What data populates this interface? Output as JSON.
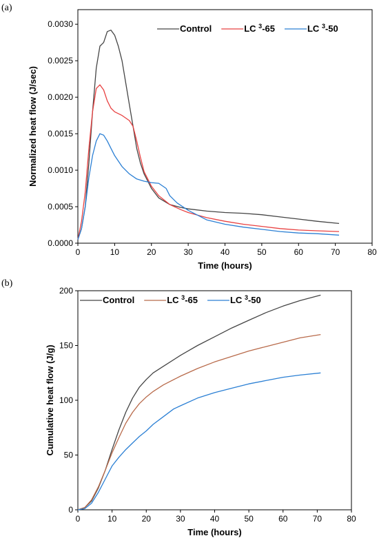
{
  "colors": {
    "control": "#444444",
    "lc3_65": "#e84040",
    "lc3_50": "#2a7fd4",
    "lc3_65_b": "#b86a4a"
  },
  "chart_data": [
    {
      "panel": "(a)",
      "type": "line",
      "xlabel": "Time (hours)",
      "ylabel": "Normalized heat flow (J/sec)",
      "xlim": [
        0,
        80
      ],
      "ylim": [
        0,
        0.0032
      ],
      "xticks": [
        0,
        10,
        20,
        30,
        40,
        50,
        60,
        70,
        80
      ],
      "yticks": [
        0.0,
        0.0005,
        0.001,
        0.0015,
        0.002,
        0.0025,
        0.003
      ],
      "ytick_labels": [
        "0.0000",
        "0.0005",
        "0.0010",
        "0.0015",
        "0.0020",
        "0.0025",
        "0.0030"
      ],
      "grid": false,
      "legend_position": "top-right",
      "series": [
        {
          "name": "Control",
          "color_key": "control",
          "x": [
            0,
            1,
            2,
            3,
            4,
            5,
            6,
            7,
            8,
            9,
            10,
            11,
            12,
            13,
            14,
            15,
            16,
            17,
            18,
            20,
            22,
            25,
            28,
            30,
            35,
            40,
            45,
            50,
            55,
            60,
            65,
            71
          ],
          "y": [
            5e-05,
            0.0002,
            0.0005,
            0.0011,
            0.0018,
            0.0024,
            0.0027,
            0.00275,
            0.0029,
            0.00292,
            0.00285,
            0.0027,
            0.0025,
            0.0022,
            0.0019,
            0.0016,
            0.0013,
            0.0011,
            0.00095,
            0.00075,
            0.00062,
            0.00053,
            0.00049,
            0.00047,
            0.00044,
            0.00042,
            0.00041,
            0.00039,
            0.00036,
            0.00033,
            0.0003,
            0.00027
          ]
        },
        {
          "name": "LC 3-65",
          "color_key": "lc3_65",
          "x": [
            0,
            1,
            2,
            3,
            4,
            5,
            6,
            7,
            8,
            9,
            10,
            12,
            14,
            15,
            16,
            17,
            18,
            20,
            22,
            25,
            28,
            30,
            35,
            40,
            45,
            50,
            55,
            60,
            65,
            71
          ],
          "y": [
            5e-05,
            0.0003,
            0.0007,
            0.0013,
            0.0018,
            0.00212,
            0.00217,
            0.0021,
            0.00195,
            0.00185,
            0.0018,
            0.00175,
            0.00168,
            0.0016,
            0.0014,
            0.00118,
            0.00098,
            0.00078,
            0.00065,
            0.00053,
            0.00046,
            0.00042,
            0.00035,
            0.0003,
            0.00026,
            0.00023,
            0.0002,
            0.00018,
            0.00017,
            0.00016
          ]
        },
        {
          "name": "LC 3-50",
          "color_key": "lc3_50",
          "x": [
            0,
            1,
            2,
            3,
            4,
            5,
            6,
            7,
            8,
            9,
            10,
            12,
            14,
            16,
            18,
            20,
            22,
            24,
            25,
            27,
            30,
            35,
            40,
            45,
            50,
            55,
            60,
            65,
            71
          ],
          "y": [
            5e-05,
            0.0002,
            0.0005,
            0.0009,
            0.0012,
            0.0014,
            0.0015,
            0.00148,
            0.0014,
            0.0013,
            0.0012,
            0.00105,
            0.00095,
            0.00088,
            0.00085,
            0.00083,
            0.00082,
            0.00075,
            0.00065,
            0.00055,
            0.00045,
            0.00032,
            0.00026,
            0.00022,
            0.00019,
            0.00016,
            0.00014,
            0.00013,
            0.00011
          ]
        }
      ]
    },
    {
      "panel": "(b)",
      "type": "line",
      "xlabel": "Time (hours)",
      "ylabel": "Cumulative heat flow (J/g)",
      "xlim": [
        0,
        80
      ],
      "ylim": [
        0,
        200
      ],
      "xticks": [
        0,
        10,
        20,
        30,
        40,
        50,
        60,
        70,
        80
      ],
      "yticks": [
        0,
        50,
        100,
        150,
        200
      ],
      "ytick_labels": [
        "0",
        "50",
        "100",
        "150",
        "200"
      ],
      "grid": false,
      "legend_position": "top-left",
      "series": [
        {
          "name": "Control",
          "color_key": "control",
          "x": [
            0,
            2,
            4,
            6,
            8,
            10,
            12,
            14,
            16,
            18,
            20,
            22,
            25,
            30,
            35,
            40,
            45,
            50,
            55,
            60,
            65,
            71
          ],
          "y": [
            0,
            2,
            8,
            20,
            36,
            55,
            73,
            89,
            102,
            112,
            119,
            125,
            131,
            141,
            150,
            158,
            166,
            173,
            180,
            186,
            191,
            196
          ]
        },
        {
          "name": "LC 3-65",
          "color_key": "lc3_65_b",
          "x": [
            0,
            2,
            4,
            6,
            8,
            10,
            12,
            14,
            16,
            18,
            20,
            22,
            25,
            30,
            35,
            40,
            45,
            50,
            55,
            60,
            65,
            71
          ],
          "y": [
            0,
            2,
            9,
            21,
            36,
            52,
            66,
            79,
            89,
            97,
            103,
            108,
            114,
            122,
            129,
            135,
            140,
            145,
            149,
            153,
            157,
            160
          ]
        },
        {
          "name": "LC 3-50",
          "color_key": "lc3_50",
          "x": [
            0,
            2,
            4,
            6,
            8,
            10,
            12,
            14,
            16,
            18,
            20,
            22,
            25,
            28,
            30,
            35,
            40,
            45,
            50,
            55,
            60,
            65,
            71
          ],
          "y": [
            0,
            1,
            6,
            16,
            28,
            40,
            48,
            55,
            61,
            67,
            72,
            78,
            85,
            92,
            95,
            102,
            107,
            111,
            115,
            118,
            121,
            123,
            125
          ]
        }
      ]
    }
  ]
}
